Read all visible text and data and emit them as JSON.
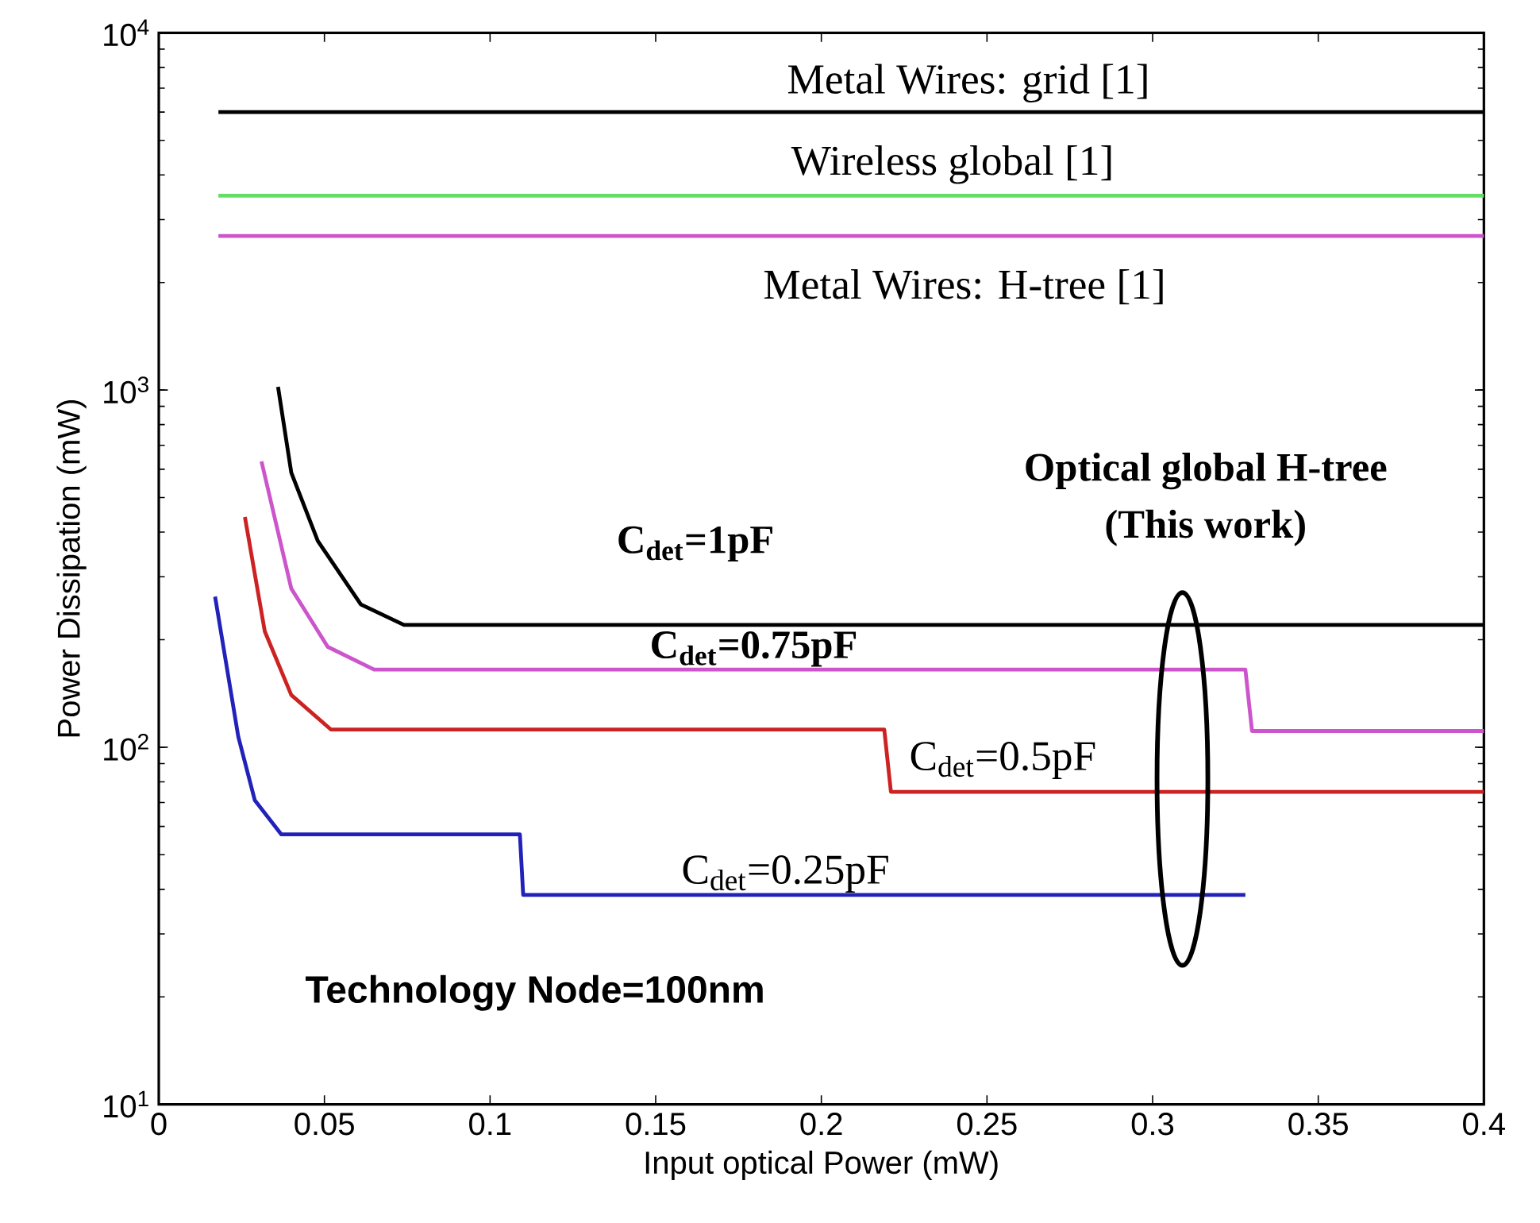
{
  "chart_data": {
    "type": "line",
    "xlabel": "Input optical Power (mW)",
    "ylabel": "Power Dissipation (mW)",
    "log": "y",
    "xlim": [
      0,
      0.4
    ],
    "ylim": [
      10,
      10000
    ],
    "xticks": [
      0,
      0.05,
      0.1,
      0.15,
      0.2,
      0.25,
      0.3,
      0.35,
      0.4
    ],
    "yticks": [
      {
        "value": 10,
        "label": "10$^{1}$"
      },
      {
        "value": 100,
        "label": "10$^{2}$"
      },
      {
        "value": 1000,
        "label": "10$^{3}$"
      },
      {
        "value": 10000,
        "label": "10$^{4}$"
      }
    ],
    "grid": false,
    "marker": "none",
    "line_style": "solid",
    "series": [
      {
        "color": "#000000",
        "x": [
          0.018,
          0.4
        ],
        "values": [
          6000,
          6000
        ]
      },
      {
        "color": "#66dd66",
        "x": [
          0.018,
          0.4
        ],
        "values": [
          3500,
          3500
        ]
      },
      {
        "color": "#cc55cc",
        "x": [
          0.018,
          0.4
        ],
        "values": [
          2700,
          2700
        ]
      },
      {
        "color": "#000000",
        "x": [
          0.036,
          0.04,
          0.048,
          0.061,
          0.074,
          0.4
        ],
        "values": [
          1020,
          587,
          378,
          251,
          220,
          220
        ]
      },
      {
        "color": "#cc55cc",
        "x": [
          0.031,
          0.04,
          0.051,
          0.065,
          0.328,
          0.33,
          0.4
        ],
        "values": [
          631,
          278,
          191,
          165,
          165,
          111,
          111
        ]
      },
      {
        "color": "#cc2222",
        "x": [
          0.026,
          0.032,
          0.04,
          0.052,
          0.219,
          0.221,
          0.4
        ],
        "values": [
          441,
          211,
          140,
          112,
          112,
          75,
          75
        ]
      },
      {
        "color": "#2222bb",
        "x": [
          0.017,
          0.024,
          0.029,
          0.037,
          0.109,
          0.11,
          0.328
        ],
        "values": [
          264,
          107,
          71,
          57,
          57,
          38.6,
          38.6
        ]
      }
    ],
    "annotations": [
      "Metal Wires: grid [1]",
      "Wireless global [1]",
      "Metal Wires: H-tree [1]",
      "C$_{det}$=1pF",
      "C$_{det}$=0.75pF",
      "C$_{det}$=0.5pF",
      "C$_{det}$=0.25pF",
      "Optical global H-tree",
      "(This work)",
      "Technology Node=100nm"
    ]
  }
}
